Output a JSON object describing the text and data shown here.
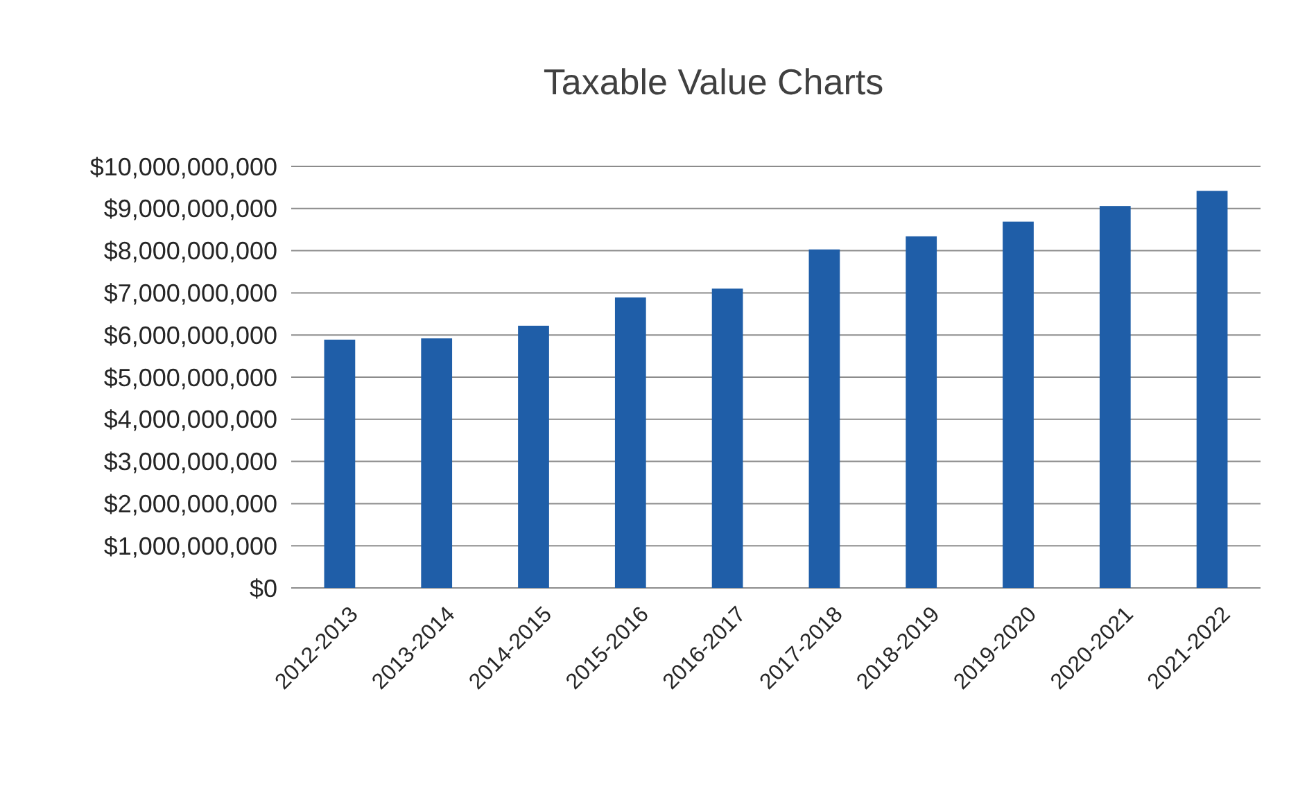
{
  "chart_data": {
    "type": "bar",
    "title": "Taxable Value Charts",
    "categories": [
      "2012-2013",
      "2013-2014",
      "2014-2015",
      "2015-2016",
      "2016-2017",
      "2017-2018",
      "2018-2019",
      "2019-2020",
      "2020-2021",
      "2021-2022"
    ],
    "values": [
      5890000000,
      5920000000,
      6220000000,
      6890000000,
      7100000000,
      8030000000,
      8340000000,
      8690000000,
      9060000000,
      9420000000
    ],
    "color": "#1f5ea8",
    "ylim": [
      0,
      10000000000
    ],
    "yticks": [
      {
        "value": 0,
        "label": "$0"
      },
      {
        "value": 1000000000,
        "label": "$1,000,000,000"
      },
      {
        "value": 2000000000,
        "label": "$2,000,000,000"
      },
      {
        "value": 3000000000,
        "label": "$3,000,000,000"
      },
      {
        "value": 4000000000,
        "label": "$4,000,000,000"
      },
      {
        "value": 5000000000,
        "label": "$5,000,000,000"
      },
      {
        "value": 6000000000,
        "label": "$6,000,000,000"
      },
      {
        "value": 7000000000,
        "label": "$7,000,000,000"
      },
      {
        "value": 8000000000,
        "label": "$8,000,000,000"
      },
      {
        "value": 9000000000,
        "label": "$9,000,000,000"
      },
      {
        "value": 10000000000,
        "label": "$10,000,000,000"
      }
    ],
    "grid": true
  }
}
